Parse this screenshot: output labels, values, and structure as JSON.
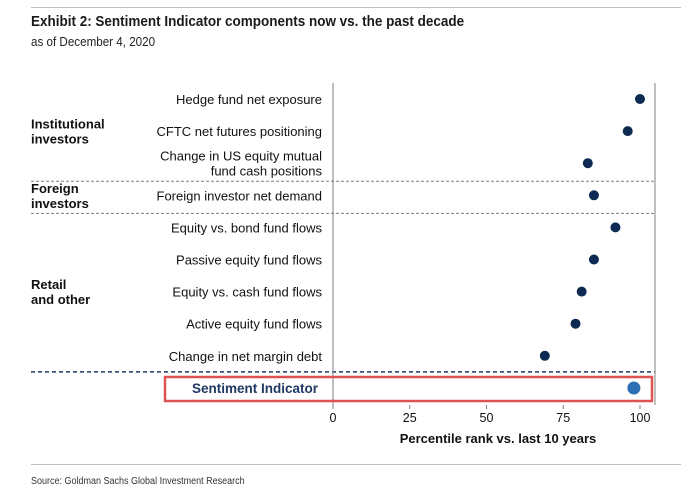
{
  "title": "Exhibit 2: Sentiment Indicator components now vs. the past decade",
  "subtitle": "as of December 4, 2020",
  "source": "Source: Goldman Sachs Global Investment Research",
  "colors": {
    "dot": "#0d2b52",
    "highlight_dot": "#2e6fb5",
    "highlight_text": "#1f3864",
    "highlight_box": "#e05252",
    "divider_blue": "#1f3864"
  },
  "chart_data": {
    "type": "scatter",
    "orientation": "horizontal",
    "xlabel": "Percentile rank vs. last 10 years",
    "xlim": [
      0,
      100
    ],
    "xticks": [
      0,
      25,
      50,
      75,
      100
    ],
    "grid": false,
    "groups": [
      {
        "label": "Institutional investors",
        "lines": [
          "Institutional",
          "investors"
        ],
        "rows": [
          0,
          2
        ]
      },
      {
        "label": "Foreign investors",
        "lines": [
          "Foreign",
          "investors"
        ],
        "rows": [
          3,
          3
        ]
      },
      {
        "label": "Retail and other",
        "lines": [
          "Retail",
          "and other"
        ],
        "rows": [
          4,
          8
        ]
      }
    ],
    "points": [
      {
        "label": "Hedge fund net exposure",
        "lines": [
          "Hedge fund net exposure"
        ],
        "value": 100
      },
      {
        "label": "CFTC net futures positioning",
        "lines": [
          "CFTC net futures positioning"
        ],
        "value": 96
      },
      {
        "label": "Change in US equity mutual fund cash positions",
        "lines": [
          "Change in US equity mutual",
          "fund cash positions"
        ],
        "value": 83
      },
      {
        "label": "Foreign investor net demand",
        "lines": [
          "Foreign investor net demand"
        ],
        "value": 85
      },
      {
        "label": "Equity vs. bond fund flows",
        "lines": [
          "Equity vs. bond fund flows"
        ],
        "value": 92
      },
      {
        "label": "Passive equity fund flows",
        "lines": [
          "Passive equity fund flows"
        ],
        "value": 85
      },
      {
        "label": "Equity vs. cash fund flows",
        "lines": [
          "Equity vs. cash fund flows"
        ],
        "value": 81
      },
      {
        "label": "Active equity fund flows",
        "lines": [
          "Active equity fund flows"
        ],
        "value": 79
      },
      {
        "label": "Change in net margin debt",
        "lines": [
          "Change in net margin debt"
        ],
        "value": 69
      }
    ],
    "highlight": {
      "label": "Sentiment Indicator",
      "value": 98
    }
  }
}
